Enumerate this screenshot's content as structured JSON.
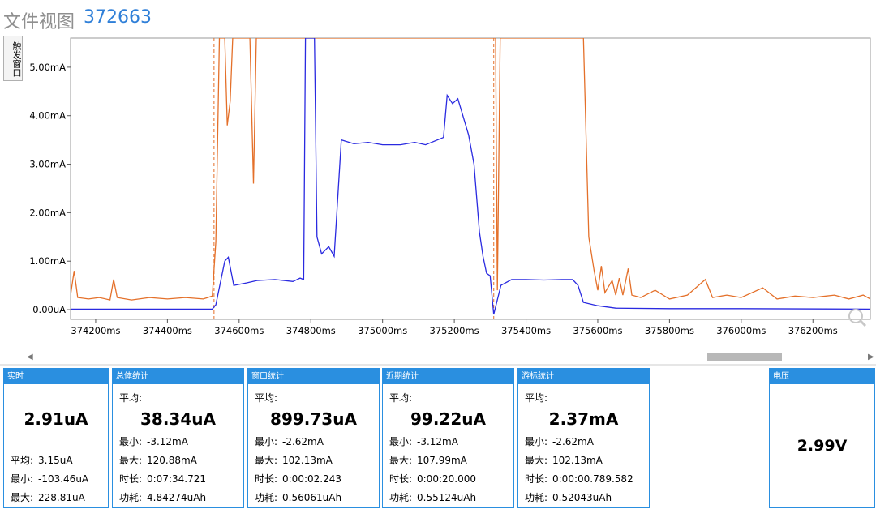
{
  "window": {
    "title": "文件视图",
    "id": "372663"
  },
  "trigger_button": "触发窗口",
  "chart_data": {
    "type": "line",
    "y_ticks": [
      "0.00uA",
      "1.00mA",
      "2.00mA",
      "3.00mA",
      "4.00mA",
      "5.00mA"
    ],
    "x_ticks": [
      "374200ms",
      "374400ms",
      "374600ms",
      "374800ms",
      "375000ms",
      "375200ms",
      "375400ms",
      "375600ms",
      "375800ms",
      "376000ms",
      "376200ms"
    ],
    "x_range_ms": [
      374130,
      376360
    ],
    "y_range_mA": [
      -0.2,
      5.6
    ],
    "markers_ms": [
      374530,
      375310
    ],
    "series": [
      {
        "color": "#2a2ae0",
        "points": [
          [
            374130,
            0.01
          ],
          [
            374300,
            0.01
          ],
          [
            374525,
            0.01
          ],
          [
            374535,
            0.1
          ],
          [
            374560,
            1.0
          ],
          [
            374570,
            1.08
          ],
          [
            374585,
            0.5
          ],
          [
            374620,
            0.55
          ],
          [
            374650,
            0.6
          ],
          [
            374700,
            0.62
          ],
          [
            374750,
            0.58
          ],
          [
            374770,
            0.65
          ],
          [
            374780,
            0.62
          ],
          [
            374785,
            5.6
          ],
          [
            374795,
            5.6
          ],
          [
            374810,
            5.6
          ],
          [
            374817,
            1.5
          ],
          [
            374830,
            1.15
          ],
          [
            374850,
            1.3
          ],
          [
            374865,
            1.1
          ],
          [
            374885,
            3.5
          ],
          [
            374920,
            3.42
          ],
          [
            374960,
            3.45
          ],
          [
            375000,
            3.4
          ],
          [
            375050,
            3.4
          ],
          [
            375090,
            3.45
          ],
          [
            375120,
            3.4
          ],
          [
            375170,
            3.55
          ],
          [
            375180,
            4.42
          ],
          [
            375195,
            4.25
          ],
          [
            375210,
            4.35
          ],
          [
            375240,
            3.6
          ],
          [
            375255,
            3.0
          ],
          [
            375270,
            1.6
          ],
          [
            375280,
            1.1
          ],
          [
            375290,
            0.75
          ],
          [
            375300,
            0.7
          ],
          [
            375310,
            -0.1
          ],
          [
            375330,
            0.5
          ],
          [
            375360,
            0.62
          ],
          [
            375400,
            0.62
          ],
          [
            375450,
            0.61
          ],
          [
            375500,
            0.62
          ],
          [
            375530,
            0.62
          ],
          [
            375545,
            0.5
          ],
          [
            375560,
            0.15
          ],
          [
            375600,
            0.08
          ],
          [
            375650,
            0.03
          ],
          [
            375800,
            0.02
          ],
          [
            376000,
            0.02
          ],
          [
            376360,
            0.01
          ]
        ]
      },
      {
        "color": "#e4702a",
        "points": [
          [
            374130,
            0.3
          ],
          [
            374140,
            0.8
          ],
          [
            374150,
            0.25
          ],
          [
            374180,
            0.22
          ],
          [
            374210,
            0.25
          ],
          [
            374240,
            0.2
          ],
          [
            374250,
            0.62
          ],
          [
            374260,
            0.25
          ],
          [
            374300,
            0.2
          ],
          [
            374350,
            0.25
          ],
          [
            374400,
            0.22
          ],
          [
            374450,
            0.25
          ],
          [
            374500,
            0.22
          ],
          [
            374525,
            0.28
          ],
          [
            374535,
            1.4
          ],
          [
            374545,
            5.6
          ],
          [
            374560,
            5.6
          ],
          [
            374567,
            3.8
          ],
          [
            374575,
            4.3
          ],
          [
            374582,
            5.6
          ],
          [
            374630,
            5.6
          ],
          [
            374640,
            2.6
          ],
          [
            374648,
            5.6
          ],
          [
            375315,
            5.6
          ],
          [
            375320,
            0.4
          ],
          [
            375328,
            5.6
          ],
          [
            375560,
            5.6
          ],
          [
            375575,
            1.5
          ],
          [
            375590,
            0.8
          ],
          [
            375600,
            0.4
          ],
          [
            375610,
            0.9
          ],
          [
            375620,
            0.35
          ],
          [
            375640,
            0.6
          ],
          [
            375650,
            0.3
          ],
          [
            375660,
            0.65
          ],
          [
            375670,
            0.3
          ],
          [
            375685,
            0.85
          ],
          [
            375695,
            0.3
          ],
          [
            375720,
            0.25
          ],
          [
            375760,
            0.4
          ],
          [
            375800,
            0.22
          ],
          [
            375850,
            0.3
          ],
          [
            375900,
            0.62
          ],
          [
            375920,
            0.25
          ],
          [
            375960,
            0.3
          ],
          [
            376000,
            0.25
          ],
          [
            376060,
            0.45
          ],
          [
            376100,
            0.22
          ],
          [
            376150,
            0.28
          ],
          [
            376200,
            0.25
          ],
          [
            376260,
            0.3
          ],
          [
            376300,
            0.22
          ],
          [
            376340,
            0.3
          ],
          [
            376360,
            0.22
          ]
        ]
      }
    ]
  },
  "panels": {
    "realtime": {
      "header": "实时",
      "value": "2.91uA",
      "avg_label": "平均:",
      "avg": "3.15uA",
      "min_label": "最小:",
      "min": "-103.46uA",
      "max_label": "最大:",
      "max": "228.81uA"
    },
    "overall": {
      "header": "总体统计",
      "avg_label": "平均:",
      "avg": "38.34uA",
      "min_label": "最小:",
      "min": "-3.12mA",
      "max_label": "最大:",
      "max": "120.88mA",
      "dur_label": "时长:",
      "dur": "0:07:34.721",
      "energy_label": "功耗:",
      "energy": "4.84274uAh"
    },
    "window": {
      "header": "窗口统计",
      "avg_label": "平均:",
      "avg": "899.73uA",
      "min_label": "最小:",
      "min": "-2.62mA",
      "max_label": "最大:",
      "max": "102.13mA",
      "dur_label": "时长:",
      "dur": "0:00:02.243",
      "energy_label": "功耗:",
      "energy": "0.56061uAh"
    },
    "recent": {
      "header": "近期统计",
      "avg_label": "平均:",
      "avg": "99.22uA",
      "min_label": "最小:",
      "min": "-3.12mA",
      "max_label": "最大:",
      "max": "107.99mA",
      "dur_label": "时长:",
      "dur": "0:00:20.000",
      "energy_label": "功耗:",
      "energy": "0.55124uAh"
    },
    "cursor": {
      "header": "游标统计",
      "avg_label": "平均:",
      "avg": "2.37mA",
      "min_label": "最小:",
      "min": "-2.62mA",
      "max_label": "最大:",
      "max": "102.13mA",
      "dur_label": "时长:",
      "dur": "0:00:00.789.582",
      "energy_label": "功耗:",
      "energy": "0.52043uAh"
    },
    "voltage": {
      "header": "电压",
      "value": "2.99V"
    }
  }
}
